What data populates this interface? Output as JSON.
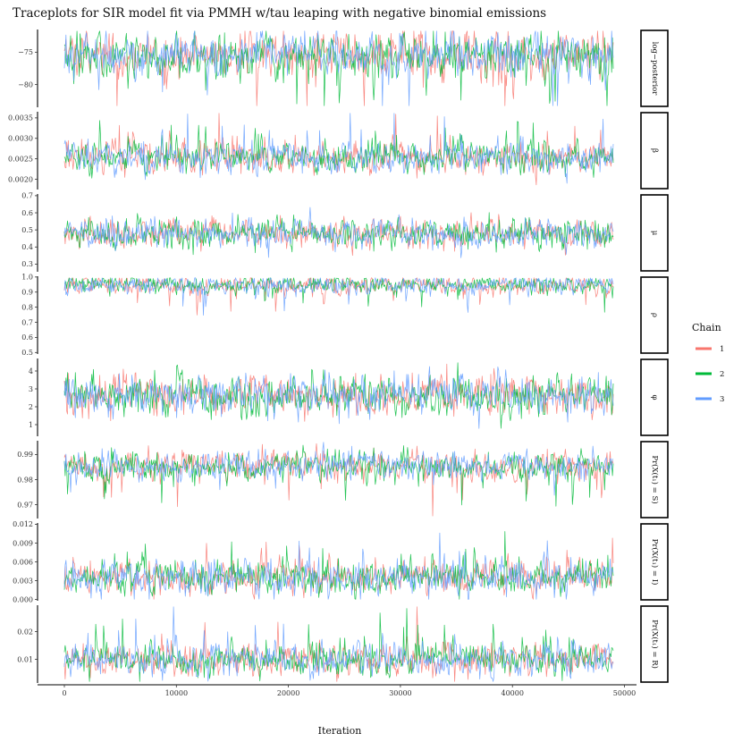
{
  "chart_data": {
    "type": "line",
    "title": "Traceplots for SIR model fit via PMMH w/tau leaping with negative binomial emissions",
    "xlabel": "Iteration",
    "xlim": [
      0,
      50000
    ],
    "x_ticks": [
      0,
      10000,
      20000,
      30000,
      40000,
      50000
    ],
    "x_tick_labels": [
      "0",
      "10000",
      "20000",
      "30000",
      "40000",
      "50000"
    ],
    "legend": {
      "title": "Chain",
      "placement": "right",
      "entries": [
        {
          "label": "1",
          "color": "#F8766D"
        },
        {
          "label": "2",
          "color": "#00BA38"
        },
        {
          "label": "3",
          "color": "#619CFF"
        }
      ]
    },
    "series": [
      {
        "chain": "1",
        "color": "#F8766D"
      },
      {
        "chain": "2",
        "color": "#00BA38"
      },
      {
        "chain": "3",
        "color": "#619CFF"
      }
    ],
    "iterations_approx": 49000,
    "panels": [
      {
        "strip": "log−posterior",
        "ylim": [
          -83.5,
          -71.5
        ],
        "ticks": [
          -75,
          -80
        ],
        "tick_labels": [
          "−75",
          "−80"
        ],
        "center": -75.3,
        "spread": 1.7,
        "tail": "low",
        "tail_strength": 0.35
      },
      {
        "strip": "β",
        "ylim": [
          0.00175,
          0.00365
        ],
        "ticks": [
          0.002,
          0.0025,
          0.003,
          0.0035
        ],
        "tick_labels": [
          "0.0020",
          "0.0025",
          "0.0030",
          "0.0035"
        ],
        "center": 0.00252,
        "spread": 0.00019,
        "tail": "high",
        "tail_strength": 0.3
      },
      {
        "strip": "μ",
        "ylim": [
          0.255,
          0.71
        ],
        "ticks": [
          0.3,
          0.4,
          0.5,
          0.6,
          0.7
        ],
        "tick_labels": [
          "0.3",
          "0.4",
          "0.5",
          "0.6",
          "0.7"
        ],
        "center": 0.48,
        "spread": 0.042,
        "tail": "none",
        "tail_strength": 0
      },
      {
        "strip": "ρ",
        "ylim": [
          0.49,
          1.005
        ],
        "ticks": [
          0.5,
          0.6,
          0.7,
          0.8,
          0.9,
          1.0
        ],
        "tick_labels": [
          "0.5",
          "0.6",
          "0.7",
          "0.8",
          "0.9",
          "1.0"
        ],
        "center": 0.95,
        "spread": 0.03,
        "tail": "low",
        "tail_strength": 0.5,
        "cap": 0.995
      },
      {
        "strip": "φ",
        "ylim": [
          0.35,
          4.7
        ],
        "ticks": [
          1,
          2,
          3,
          4
        ],
        "tick_labels": [
          "1",
          "2",
          "3",
          "4"
        ],
        "center": 2.65,
        "spread": 0.55,
        "tail": "none",
        "tail_strength": 0
      },
      {
        "strip": "Pr(X(t₁) = S)",
        "ylim": [
          0.9645,
          0.9955
        ],
        "ticks": [
          0.97,
          0.98,
          0.99
        ],
        "tick_labels": [
          "0.97",
          "0.98",
          "0.99"
        ],
        "center": 0.9857,
        "spread": 0.0027,
        "tail": "low",
        "tail_strength": 0.3
      },
      {
        "strip": "Pr(X(t₁) = I)",
        "ylim": [
          -0.0002,
          0.0122
        ],
        "ticks": [
          0.0,
          0.003,
          0.006,
          0.009,
          0.012
        ],
        "tick_labels": [
          "0.000",
          "0.003",
          "0.006",
          "0.009",
          "0.012"
        ],
        "center": 0.0034,
        "spread": 0.0013,
        "tail": "high",
        "tail_strength": 0.35
      },
      {
        "strip": "Pr(X(t₁) = R)",
        "ylim": [
          0.0015,
          0.0295
        ],
        "ticks": [
          0.01,
          0.02
        ],
        "tick_labels": [
          "0.01",
          "0.02"
        ],
        "center": 0.0098,
        "spread": 0.0027,
        "tail": "high",
        "tail_strength": 0.35
      }
    ]
  }
}
